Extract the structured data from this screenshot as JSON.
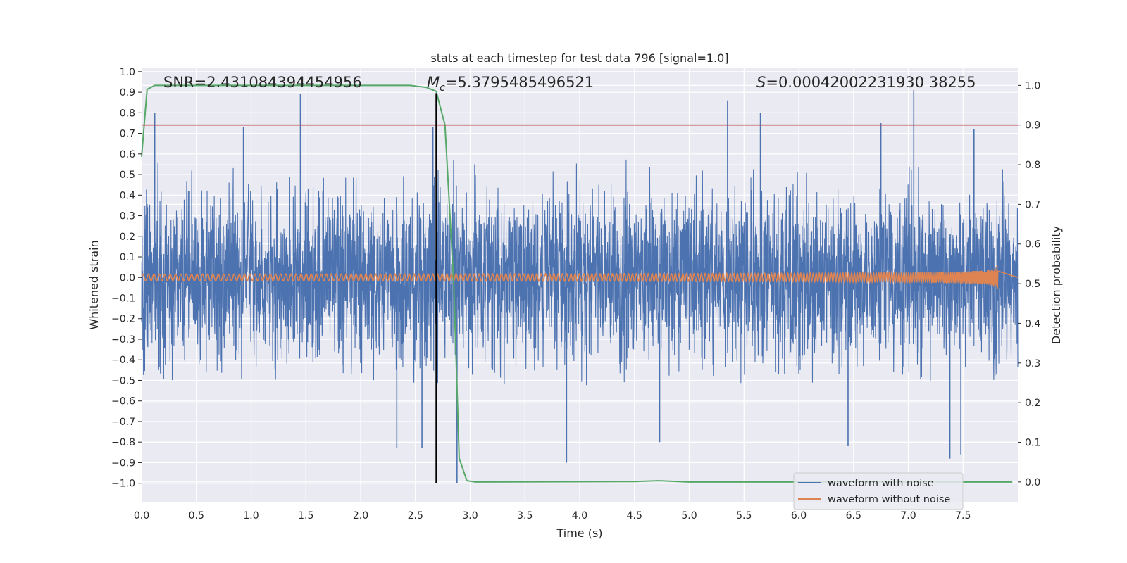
{
  "chart_data": {
    "type": "line",
    "title": "stats at each timestep for test data 796 [signal=1.0]",
    "xlabel": "Time (s)",
    "ylabel": "Whitened strain",
    "y2label": "Detection probability",
    "xlim": [
      0.0,
      8.0
    ],
    "ylim": [
      -1.09,
      1.02
    ],
    "y2lim": [
      -0.05,
      1.045
    ],
    "x_ticks": [
      "0.0",
      "0.5",
      "1.0",
      "1.5",
      "2.0",
      "2.5",
      "3.0",
      "3.5",
      "4.0",
      "4.5",
      "5.0",
      "5.5",
      "6.0",
      "6.5",
      "7.0",
      "7.5"
    ],
    "y_ticks": [
      "−1.0",
      "−0.9",
      "−0.8",
      "−0.7",
      "−0.6",
      "−0.5",
      "−0.4",
      "−0.3",
      "−0.2",
      "−0.1",
      "0.0",
      "0.1",
      "0.2",
      "0.3",
      "0.4",
      "0.5",
      "0.6",
      "0.7",
      "0.8",
      "0.9",
      "1.0"
    ],
    "y2_ticks": [
      "0.0",
      "0.1",
      "0.2",
      "0.3",
      "0.4",
      "0.5",
      "0.6",
      "0.7",
      "0.8",
      "0.9",
      "1.0"
    ],
    "grid": true,
    "legend_placement": "lower-right",
    "annotations": {
      "snr": "SNR=2.431084394454956",
      "mc_symbol": "M",
      "mc_sub": "c",
      "mc_value": "=5.3795485496521",
      "s_symbol": "S",
      "s_value": "=0.00042002231930 38255"
    },
    "threshold": {
      "axis": "y2",
      "value": 0.9,
      "color": "#c44e52"
    },
    "vline": {
      "x": 2.69,
      "y_from": -1.0,
      "y_to": 0.895,
      "color": "#000000"
    },
    "series": [
      {
        "name": "waveform with noise",
        "axis": "y",
        "color": "#4c72b0",
        "x_range": [
          0.0,
          8.0
        ],
        "approx_envelope": {
          "typical_max": 0.55,
          "typical_min": -0.5
        },
        "notable_peaks": [
          [
            0.12,
            0.8
          ],
          [
            1.45,
            0.89
          ],
          [
            0.93,
            0.73
          ],
          [
            2.66,
            0.73
          ],
          [
            5.35,
            0.86
          ],
          [
            5.65,
            0.8
          ],
          [
            6.75,
            0.75
          ],
          [
            7.05,
            0.91
          ],
          [
            7.6,
            0.72
          ]
        ],
        "notable_troughs": [
          [
            2.33,
            -0.83
          ],
          [
            2.56,
            -0.83
          ],
          [
            2.88,
            -1.0
          ],
          [
            3.88,
            -0.9
          ],
          [
            7.38,
            -0.88
          ],
          [
            7.48,
            -0.86
          ],
          [
            6.45,
            -0.82
          ],
          [
            4.73,
            -0.8
          ]
        ]
      },
      {
        "name": "waveform without noise",
        "axis": "y",
        "color": "#dd8452",
        "x_range": [
          0.0,
          7.82
        ],
        "amplitude_start": 0.006,
        "amplitude_end": 0.11,
        "frequency_start_hz": 20
      },
      {
        "name": "detection probability",
        "axis": "y2",
        "color": "#55a868",
        "points": [
          [
            0.0,
            0.82
          ],
          [
            0.05,
            0.99
          ],
          [
            0.12,
            1.0
          ],
          [
            2.45,
            1.0
          ],
          [
            2.6,
            0.995
          ],
          [
            2.69,
            0.985
          ],
          [
            2.77,
            0.9
          ],
          [
            2.85,
            0.5
          ],
          [
            2.9,
            0.06
          ],
          [
            2.97,
            0.003
          ],
          [
            3.05,
            0.0
          ],
          [
            4.5,
            0.001
          ],
          [
            4.72,
            0.003
          ],
          [
            5.0,
            0.0
          ],
          [
            7.95,
            0.0
          ]
        ]
      }
    ],
    "legend": [
      {
        "label": "waveform with noise",
        "color": "#4c72b0"
      },
      {
        "label": "waveform without noise",
        "color": "#dd8452"
      }
    ]
  }
}
